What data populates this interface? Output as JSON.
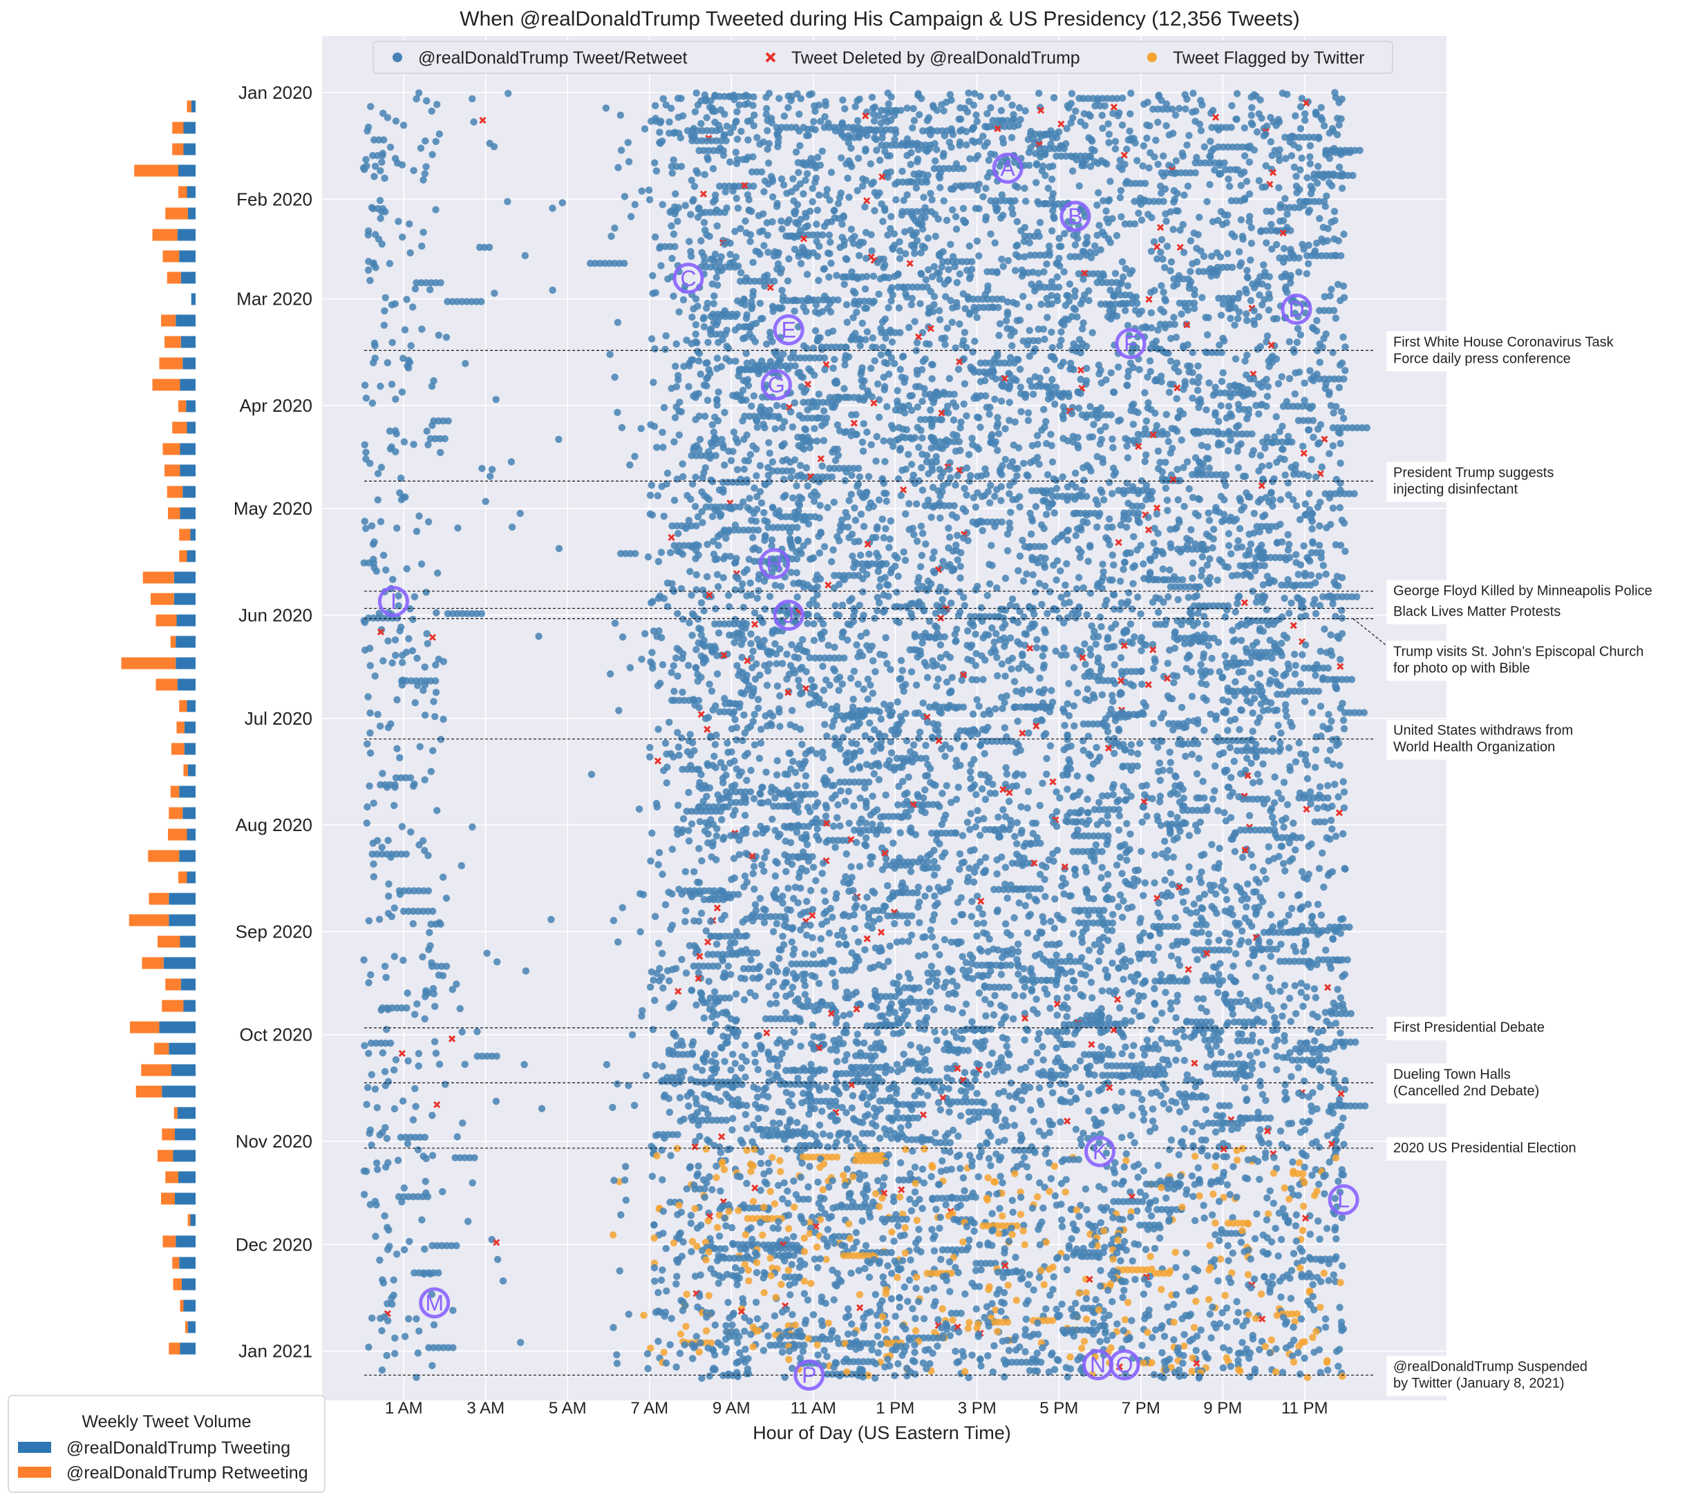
{
  "chart_data": [
    {
      "type": "scatter",
      "title": "When @realDonaldTrump Tweeted during His Campaign & US Presidency (12,356 Tweets)",
      "xlabel": "Hour of Day (US Eastern Time)",
      "ylabel": "",
      "x_ticks": [
        "1 AM",
        "3 AM",
        "5 AM",
        "7 AM",
        "9 AM",
        "11 AM",
        "1 PM",
        "3 PM",
        "5 PM",
        "7 PM",
        "9 PM",
        "11 PM"
      ],
      "x_tick_values": [
        1,
        3,
        5,
        7,
        9,
        11,
        13,
        15,
        17,
        19,
        21,
        23
      ],
      "xlim": [
        -1,
        25
      ],
      "y_ticks": [
        "Jan 2020",
        "Feb 2020",
        "Mar 2020",
        "Apr 2020",
        "May 2020",
        "Jun 2020",
        "Jul 2020",
        "Aug 2020",
        "Sep 2020",
        "Oct 2020",
        "Nov 2020",
        "Dec 2020",
        "Jan 2021"
      ],
      "y_tick_dates": [
        "2020-01-01",
        "2020-02-01",
        "2020-03-01",
        "2020-04-01",
        "2020-05-01",
        "2020-06-01",
        "2020-07-01",
        "2020-08-01",
        "2020-09-01",
        "2020-10-01",
        "2020-11-01",
        "2020-12-01",
        "2021-01-01"
      ],
      "ylim": [
        "2019-12-15",
        "2021-01-14"
      ],
      "y_inverted": true,
      "grid": true,
      "legend_position": "top-center",
      "series": [
        {
          "name": "@realDonaldTrump Tweet/Retweet",
          "marker": "circle",
          "color": "#4682b4"
        },
        {
          "name": "Tweet Deleted by @realDonaldTrump",
          "marker": "x",
          "color": "#e8332a"
        },
        {
          "name": "Tweet Flagged by Twitter",
          "marker": "circle",
          "color": "#f5a431"
        }
      ],
      "event_lines": [
        {
          "date": "2020-03-16",
          "label": [
            "First White House Coronavirus Task",
            "Force daily press conference"
          ]
        },
        {
          "date": "2020-04-23",
          "label": [
            "President Trump suggests",
            "injecting disinfectant"
          ]
        },
        {
          "date": "2020-05-25",
          "label": [
            "George Floyd Killed by Minneapolis Police"
          ]
        },
        {
          "date": "2020-05-30",
          "label": [
            "Black Lives Matter Protests"
          ]
        },
        {
          "date": "2020-06-02",
          "label": [
            "Trump visits St. John’s Episcopal Church",
            "for photo op with Bible"
          ]
        },
        {
          "date": "2020-07-07",
          "label": [
            "United States withdraws from",
            "World Health Organization"
          ]
        },
        {
          "date": "2020-09-29",
          "label": [
            "First Presidential Debate"
          ]
        },
        {
          "date": "2020-10-15",
          "label": [
            "Dueling Town Halls",
            "(Cancelled 2nd Debate)"
          ]
        },
        {
          "date": "2020-11-03",
          "label": [
            "2020 US Presidential Election"
          ]
        },
        {
          "date": "2021-01-08",
          "label": [
            "@realDonaldTrump Suspended",
            "by Twitter (January 8, 2021)"
          ]
        }
      ],
      "annotations": [
        {
          "label": "A",
          "hour": 15.75,
          "date": "2020-01-23"
        },
        {
          "label": "B",
          "hour": 17.4,
          "date": "2020-02-06"
        },
        {
          "label": "C",
          "hour": 7.95,
          "date": "2020-02-24"
        },
        {
          "label": "D",
          "hour": 22.8,
          "date": "2020-03-04"
        },
        {
          "label": "E",
          "hour": 10.4,
          "date": "2020-03-10"
        },
        {
          "label": "F",
          "hour": 18.75,
          "date": "2020-03-14"
        },
        {
          "label": "G",
          "hour": 10.1,
          "date": "2020-03-26"
        },
        {
          "label": "H",
          "hour": 10.05,
          "date": "2020-05-17"
        },
        {
          "label": "I",
          "hour": 0.75,
          "date": "2020-05-28"
        },
        {
          "label": "J",
          "hour": 10.4,
          "date": "2020-06-01"
        },
        {
          "label": "K",
          "hour": 18.0,
          "date": "2020-11-04"
        },
        {
          "label": "L",
          "hour": 23.95,
          "date": "2020-11-18"
        },
        {
          "label": "M",
          "hour": 1.75,
          "date": "2020-12-18"
        },
        {
          "label": "N",
          "hour": 17.95,
          "date": "2021-01-05"
        },
        {
          "label": "O",
          "hour": 18.6,
          "date": "2021-01-05"
        },
        {
          "label": "P",
          "hour": 10.9,
          "date": "2021-01-08"
        }
      ]
    },
    {
      "type": "bar",
      "orientation": "horizontal",
      "stacked": true,
      "legend_title": "Weekly Tweet Volume",
      "legend_position": "bottom-left",
      "axis_hidden": true,
      "series": [
        {
          "name": "@realDonaldTrump Tweeting",
          "color": "#2f77b4",
          "values": [
            5,
            14,
            14,
            20,
            10,
            9,
            21,
            19,
            17,
            5,
            23,
            17,
            15,
            18,
            11,
            10,
            18,
            18,
            15,
            18,
            6,
            10,
            25,
            25,
            22,
            23,
            23,
            21,
            10,
            13,
            13,
            9,
            19,
            15,
            10,
            19,
            10,
            31,
            31,
            18,
            37,
            17,
            14,
            42,
            31,
            28,
            39,
            21,
            24,
            26,
            20,
            24,
            6,
            23,
            19,
            16,
            14,
            9,
            18
          ]
        },
        {
          "name": "@realDonaldTrump Retweeting",
          "color": "#fe7f2d",
          "values": [
            5,
            13,
            13,
            51,
            10,
            26,
            29,
            19,
            16,
            0,
            17,
            19,
            27,
            32,
            9,
            17,
            20,
            18,
            18,
            14,
            13,
            9,
            36,
            27,
            24,
            6,
            63,
            25,
            9,
            9,
            15,
            5,
            10,
            16,
            22,
            36,
            10,
            23,
            46,
            26,
            25,
            18,
            25,
            34,
            17,
            35,
            30,
            4,
            15,
            18,
            15,
            16,
            3,
            15,
            8,
            10,
            4,
            3,
            13
          ]
        }
      ]
    }
  ]
}
